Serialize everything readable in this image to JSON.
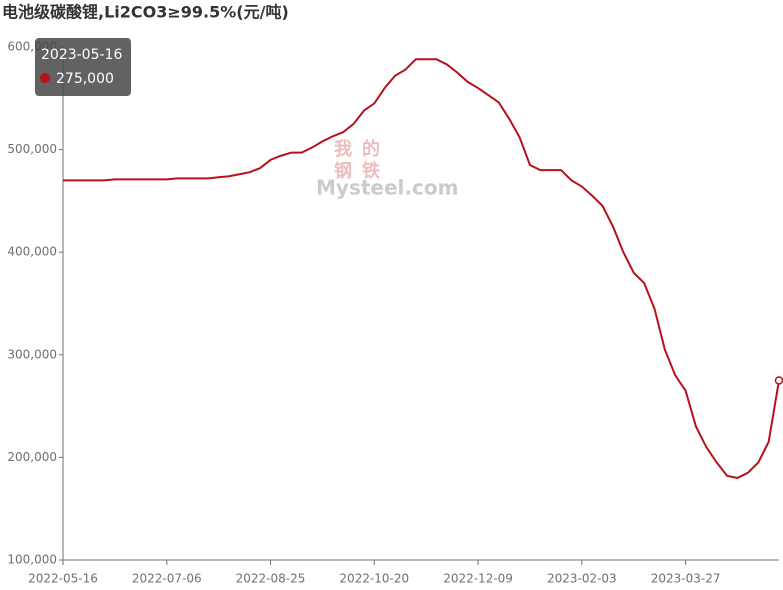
{
  "chart_data": {
    "type": "line",
    "title": "电池级碳酸锂,Li2CO3≥99.5%(元/吨)",
    "categories": [
      "2022-05-16",
      null,
      null,
      null,
      null,
      null,
      null,
      null,
      null,
      null,
      "2022-07-06",
      null,
      null,
      null,
      null,
      null,
      null,
      null,
      null,
      null,
      "2022-08-25",
      null,
      null,
      null,
      null,
      null,
      null,
      null,
      null,
      null,
      "2022-10-20",
      null,
      null,
      null,
      null,
      null,
      null,
      null,
      null,
      null,
      "2022-12-09",
      null,
      null,
      null,
      null,
      null,
      null,
      null,
      null,
      null,
      "2023-02-03",
      null,
      null,
      null,
      null,
      null,
      null,
      null,
      null,
      null,
      "2023-03-27",
      null,
      null,
      null,
      null,
      null,
      null,
      null,
      null,
      null
    ],
    "values": [
      470000,
      470000,
      470000,
      470000,
      470000,
      471000,
      471000,
      471000,
      471000,
      471000,
      471000,
      472000,
      472000,
      472000,
      472000,
      473000,
      474000,
      476000,
      478000,
      482000,
      490000,
      494000,
      497000,
      497000,
      502000,
      508000,
      513000,
      517000,
      525000,
      538000,
      545000,
      560000,
      572000,
      578000,
      588000,
      588000,
      588000,
      583000,
      575000,
      566000,
      560000,
      553000,
      546000,
      530000,
      512000,
      485000,
      480000,
      480000,
      480000,
      470000,
      464000,
      455000,
      445000,
      425000,
      400000,
      380000,
      370000,
      345000,
      305000,
      280000,
      265000,
      230000,
      210000,
      195000,
      182000,
      180000,
      185000,
      195000,
      215000,
      275000
    ],
    "color": "#b5121b",
    "ylim": [
      100000,
      600000
    ],
    "yticks": [
      {
        "value": 100000,
        "label": "100,000"
      },
      {
        "value": 200000,
        "label": "200,000"
      },
      {
        "value": 300000,
        "label": "300,000"
      },
      {
        "value": 400000,
        "label": "400,000"
      },
      {
        "value": 500000,
        "label": "500,000"
      },
      {
        "value": 600000,
        "label": "600,000"
      }
    ],
    "tooltip": {
      "category": "2023-05-16",
      "value": 275000,
      "label": "275,000"
    },
    "watermark": {
      "chars": [
        "我",
        "的",
        "钢",
        "铁"
      ],
      "text": "Mysteel.com"
    }
  }
}
